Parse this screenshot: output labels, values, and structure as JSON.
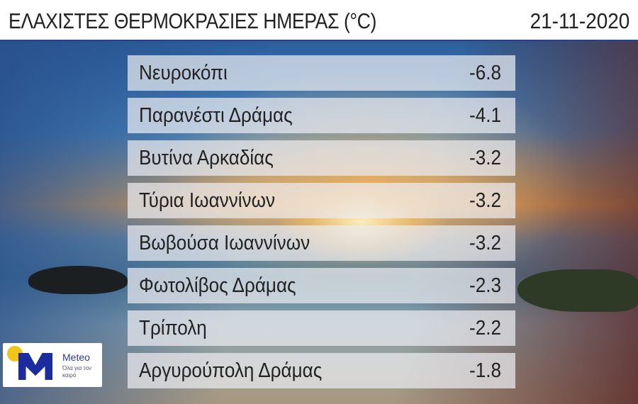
{
  "header": {
    "title": "ΕΛΑΧΙΣΤΕΣ ΘΕΡΜΟΚΡΑΣΙΕΣ ΗΜΕΡΑΣ (°C)",
    "date": "21-11-2020"
  },
  "rows": [
    {
      "station": "Νευροκόπι",
      "value": "-6.8"
    },
    {
      "station": "Παρανέστι Δράμας",
      "value": "-4.1"
    },
    {
      "station": "Βυτίνα Αρκαδίας",
      "value": "-3.2"
    },
    {
      "station": "Τύρια Ιωαννίνων",
      "value": "-3.2"
    },
    {
      "station": "Βωβούσα Ιωαννίνων",
      "value": "-3.2"
    },
    {
      "station": "Φωτολίβος Δράμας",
      "value": "-2.3"
    },
    {
      "station": "Τρίπολη",
      "value": "-2.2"
    },
    {
      "station": "Αργυρούπολη Δράμας",
      "value": "-1.8"
    }
  ],
  "logo": {
    "name": "Meteo",
    "slogan": "Όλα για τον καιρό",
    "colors": {
      "blue": "#1b2c9e",
      "yellow": "#f2c31a"
    }
  }
}
